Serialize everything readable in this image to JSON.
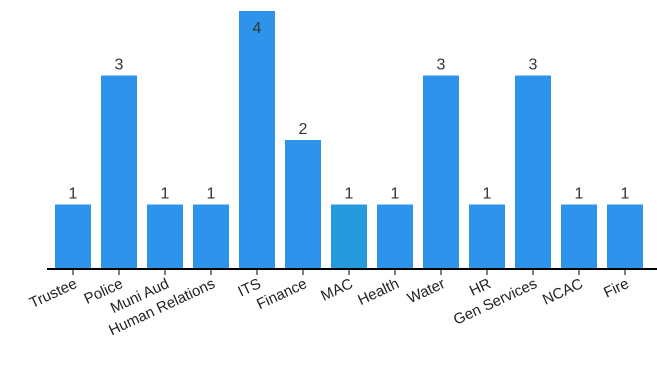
{
  "chart_data": {
    "type": "bar",
    "title": "",
    "xlabel": "",
    "ylabel": "",
    "categories": [
      "Trustee",
      "Police",
      "Muni Aud",
      "Human Relations",
      "ITS",
      "Finance",
      "MAC",
      "Health",
      "Water",
      "HR",
      "Gen Services",
      "NCAC",
      "Fire"
    ],
    "values": [
      1,
      3,
      1,
      1,
      4,
      2,
      1,
      1,
      3,
      1,
      3,
      1,
      1
    ],
    "ylim": [
      0,
      4
    ],
    "grid": false,
    "data_labels": true,
    "bar_color": "#2e93ea",
    "highlight": {
      "category": "MAC",
      "color": "#2799dd"
    }
  }
}
